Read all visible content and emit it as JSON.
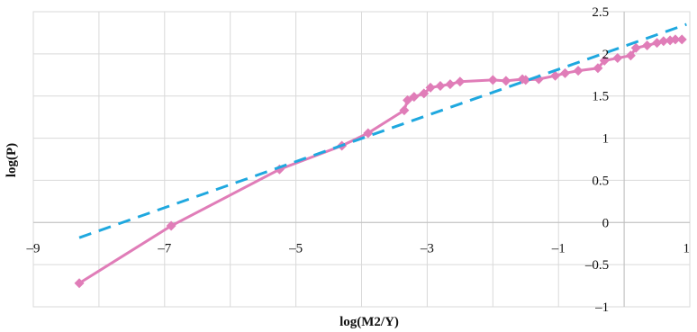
{
  "chart_data": {
    "type": "scatter",
    "title": "",
    "xlabel": "log(M2/Y)",
    "ylabel": "log(P)",
    "xlim": [
      -9,
      1
    ],
    "ylim": [
      -1,
      2.5
    ],
    "x_ticks": [
      "–9",
      "–7",
      "–5",
      "–3",
      "–1",
      "1"
    ],
    "y_ticks": [
      "2.5",
      "2",
      "1.5",
      "1",
      "0.5",
      "0",
      "–0.5",
      "–1"
    ],
    "x_tick_values": [
      -9,
      -7,
      -5,
      -3,
      -1,
      1
    ],
    "y_tick_values": [
      2.5,
      2,
      1.5,
      1,
      0.5,
      0,
      -0.5,
      -1
    ],
    "grid": true,
    "legend": "none",
    "series": [
      {
        "style": "solid line with diamond markers",
        "color": "#e07db8",
        "points": [
          [
            -8.3,
            -0.72
          ],
          [
            -6.9,
            -0.04
          ],
          [
            -5.25,
            0.63
          ],
          [
            -4.3,
            0.91
          ],
          [
            -3.9,
            1.06
          ],
          [
            -3.35,
            1.33
          ],
          [
            -3.3,
            1.45
          ],
          [
            -3.2,
            1.49
          ],
          [
            -3.05,
            1.53
          ],
          [
            -2.95,
            1.6
          ],
          [
            -2.8,
            1.62
          ],
          [
            -2.65,
            1.64
          ],
          [
            -2.5,
            1.67
          ],
          [
            -2.0,
            1.69
          ],
          [
            -1.8,
            1.68
          ],
          [
            -1.55,
            1.7
          ],
          [
            -1.5,
            1.69
          ],
          [
            -1.3,
            1.7
          ],
          [
            -1.05,
            1.74
          ],
          [
            -0.9,
            1.77
          ],
          [
            -0.7,
            1.8
          ],
          [
            -0.4,
            1.83
          ],
          [
            -0.3,
            1.92
          ],
          [
            -0.1,
            1.95
          ],
          [
            0.1,
            1.98
          ],
          [
            0.18,
            2.07
          ],
          [
            0.35,
            2.1
          ],
          [
            0.5,
            2.13
          ],
          [
            0.6,
            2.15
          ],
          [
            0.7,
            2.16
          ],
          [
            0.78,
            2.17
          ],
          [
            0.88,
            2.17
          ]
        ]
      },
      {
        "style": "dashed trend line",
        "color": "#1fa8df",
        "points": [
          [
            -8.3,
            -0.18
          ],
          [
            0.95,
            2.35
          ]
        ]
      }
    ]
  }
}
